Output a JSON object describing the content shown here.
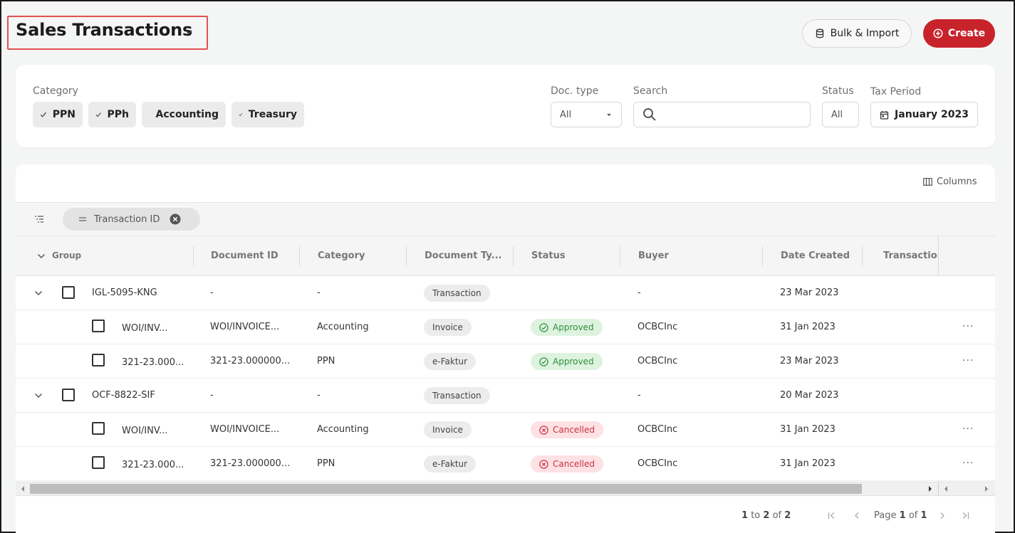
{
  "header": {
    "title": "Sales Transactions",
    "bulk_label": "Bulk & Import",
    "create_label": "Create"
  },
  "filters": {
    "category_label": "Category",
    "chips": [
      "PPN",
      "PPh",
      "Accounting",
      "Treasury"
    ],
    "doctype_label": "Doc. type",
    "doctype_value": "All",
    "search_label": "Search",
    "search_value": "",
    "status_label": "Status",
    "status_value": "All",
    "tax_label": "Tax Period",
    "tax_value": "January 2023"
  },
  "toolbar": {
    "columns_label": "Columns",
    "group_pill_label": "Transaction ID"
  },
  "table": {
    "columns": [
      "Group",
      "Document ID",
      "Category",
      "Document Ty...",
      "Status",
      "Buyer",
      "Date Created",
      "Transaction"
    ],
    "rows": [
      {
        "kind": "group",
        "group": "IGL-5095-KNG",
        "doc_id": "-",
        "category": "-",
        "doc_type": "Transaction",
        "status": "",
        "buyer": "-",
        "date": "23 Mar 2023"
      },
      {
        "kind": "child",
        "group": "WOI/INV...",
        "doc_id": "WOI/INVOICE...",
        "category": "Accounting",
        "doc_type": "Invoice",
        "status": "Approved",
        "buyer": "OCBCInc",
        "date": "31 Jan 2023"
      },
      {
        "kind": "child",
        "group": "321-23.000...",
        "doc_id": "321-23.000000...",
        "category": "PPN",
        "doc_type": "e-Faktur",
        "status": "Approved",
        "buyer": "OCBCInc",
        "date": "23 Mar 2023"
      },
      {
        "kind": "group",
        "group": "OCF-8822-SIF",
        "doc_id": "-",
        "category": "-",
        "doc_type": "Transaction",
        "status": "",
        "buyer": "-",
        "date": "20 Mar 2023"
      },
      {
        "kind": "child",
        "group": "WOI/INV...",
        "doc_id": "WOI/INVOICE...",
        "category": "Accounting",
        "doc_type": "Invoice",
        "status": "Cancelled",
        "buyer": "OCBCInc",
        "date": "31 Jan 2023"
      },
      {
        "kind": "child",
        "group": "321-23.000...",
        "doc_id": "321-23.000000...",
        "category": "PPN",
        "doc_type": "e-Faktur",
        "status": "Cancelled",
        "buyer": "OCBCInc",
        "date": "31 Jan 2023"
      }
    ]
  },
  "pagination": {
    "range_from": "1",
    "to_word": "to",
    "range_to": "2",
    "of_word": "of",
    "total": "2",
    "page_word": "Page",
    "page_current": "1",
    "page_of_word": "of",
    "page_total": "1"
  },
  "colors": {
    "accent": "#c8232b",
    "approved_bg": "#def3df",
    "approved_text": "#2f8f3a",
    "cancelled_bg": "#fde1e4",
    "cancelled_text": "#c8323c"
  }
}
